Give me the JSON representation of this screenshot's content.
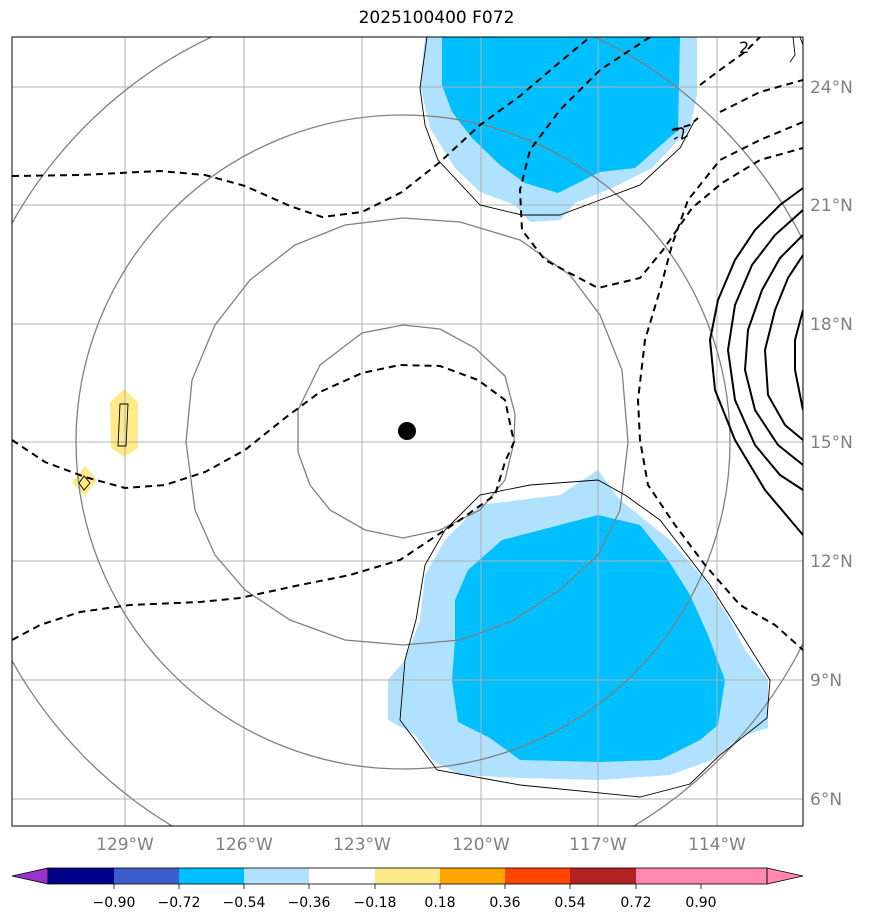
{
  "title": "2025100400 F072",
  "map": {
    "lat_ticks": [
      "24°N",
      "21°N",
      "18°N",
      "15°N",
      "12°N",
      "9°N",
      "6°N"
    ],
    "lon_ticks": [
      "129°W",
      "126°W",
      "123°W",
      "120°W",
      "117°W",
      "114°W"
    ],
    "contour_labels": [
      "2",
      "-2"
    ],
    "center_marker": "storm-center"
  },
  "colorbar": {
    "ticks": [
      "−0.90",
      "−0.72",
      "−0.54",
      "−0.36",
      "−0.18",
      "0.18",
      "0.36",
      "0.54",
      "0.72",
      "0.90"
    ],
    "colors": [
      "#9932cc",
      "#00008b",
      "#3a5fcd",
      "#00bfff",
      "#b0e2ff",
      "#ffffff",
      "#ffea8a",
      "#ffa500",
      "#ff4500",
      "#b22222",
      "#ff88b0"
    ]
  }
}
